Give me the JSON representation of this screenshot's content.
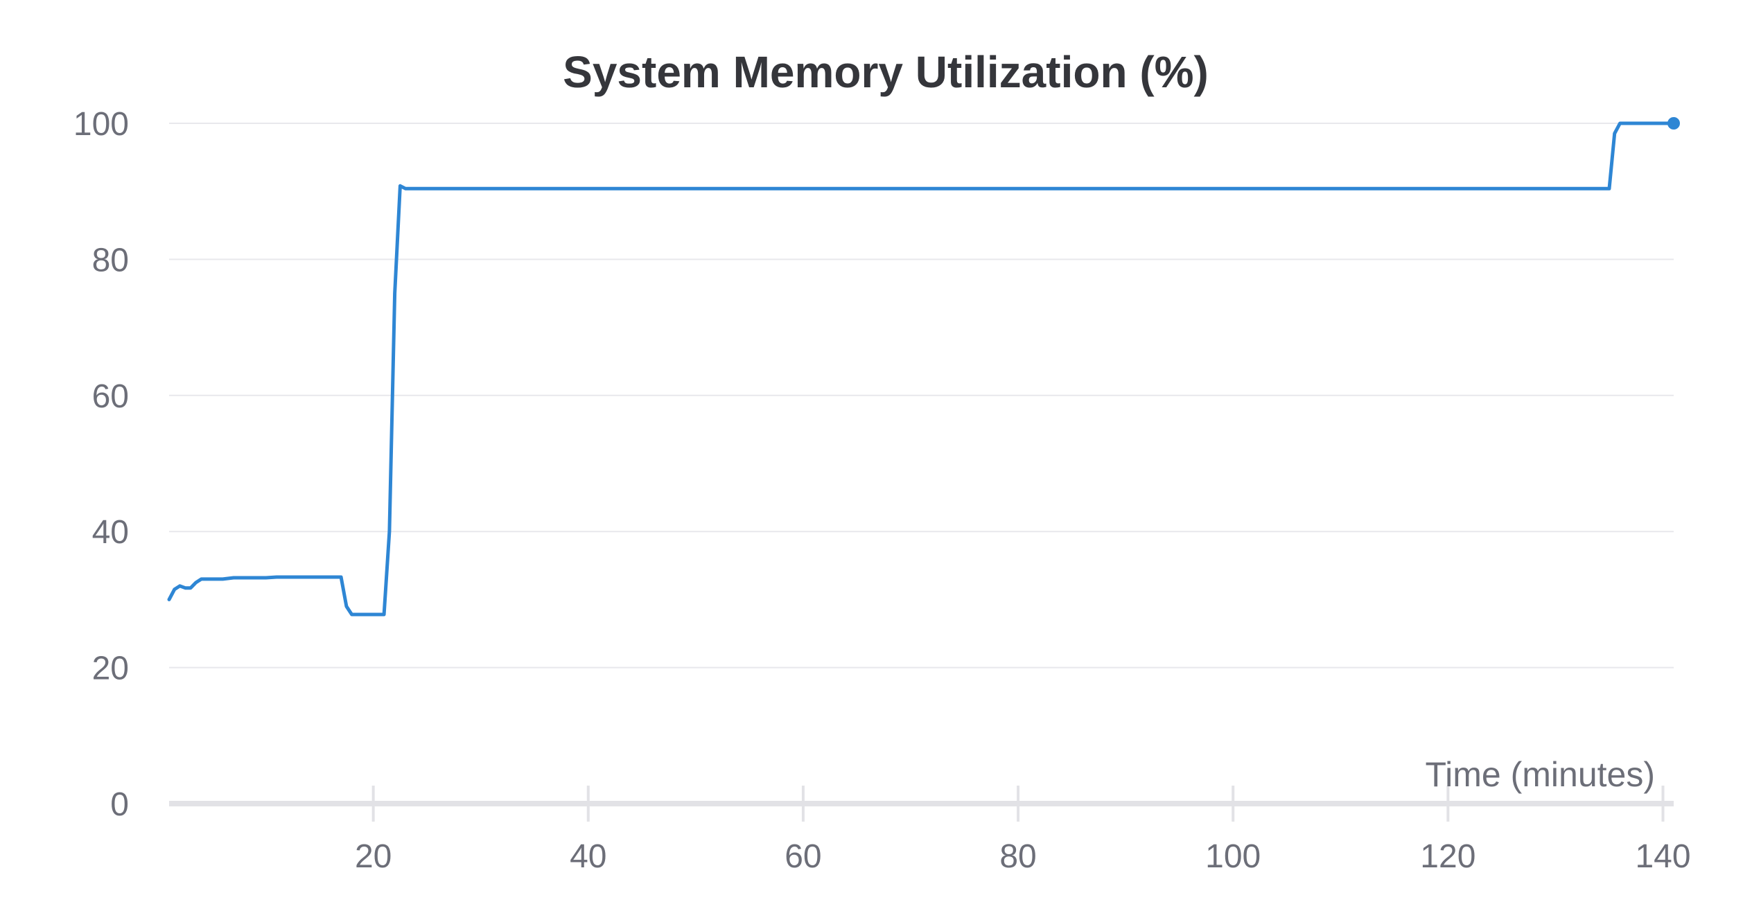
{
  "chart_data": {
    "type": "line",
    "title": "System Memory Utilization (%)",
    "xlabel": "Time (minutes)",
    "ylabel": "",
    "xlim": [
      1,
      141
    ],
    "ylim": [
      0,
      100
    ],
    "xticks": [
      20,
      40,
      60,
      80,
      100,
      120,
      140
    ],
    "yticks": [
      0,
      20,
      40,
      60,
      80,
      100
    ],
    "grid": true,
    "legend": "none",
    "end_marker": true,
    "series": [
      {
        "color": "#2e86d4",
        "x": [
          1,
          1.5,
          2,
          2.5,
          3,
          3.5,
          4,
          5,
          6,
          7,
          8,
          9,
          10,
          11,
          12,
          13,
          14,
          15,
          16,
          17,
          17.5,
          18,
          18.5,
          19,
          20,
          21,
          21.5,
          22,
          22.5,
          23,
          25,
          30,
          35,
          40,
          45,
          50,
          55,
          60,
          65,
          70,
          75,
          80,
          85,
          90,
          95,
          100,
          105,
          110,
          115,
          120,
          125,
          130,
          134,
          135,
          135.5,
          136,
          137,
          138,
          139,
          140,
          141
        ],
        "y": [
          30,
          31.5,
          32,
          31.7,
          31.7,
          32.5,
          33,
          33,
          33,
          33.2,
          33.2,
          33.2,
          33.2,
          33.3,
          33.3,
          33.3,
          33.3,
          33.3,
          33.3,
          33.3,
          29,
          27.8,
          27.8,
          27.8,
          27.8,
          27.8,
          40,
          75,
          90.8,
          90.4,
          90.4,
          90.4,
          90.4,
          90.4,
          90.4,
          90.4,
          90.4,
          90.4,
          90.4,
          90.4,
          90.4,
          90.4,
          90.4,
          90.4,
          90.4,
          90.4,
          90.4,
          90.4,
          90.4,
          90.4,
          90.4,
          90.4,
          90.4,
          90.4,
          98.5,
          100,
          100,
          100,
          100,
          100,
          100
        ]
      }
    ]
  }
}
